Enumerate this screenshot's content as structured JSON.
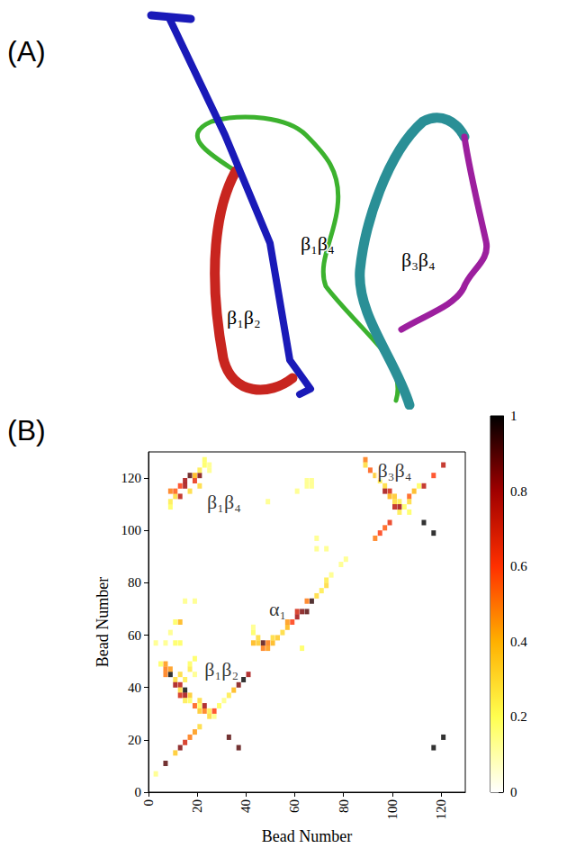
{
  "structure": {
    "panel_label": "(A)",
    "labels": [
      "β₁β₂",
      "β₁β₄",
      "β₃β₄"
    ]
  },
  "chart_data": {
    "type": "heatmap",
    "panel_label": "(B)",
    "x_label": "Bead Number",
    "y_label": "Bead Number",
    "xlim": [
      0,
      130
    ],
    "ylim": [
      0,
      130
    ],
    "xticks": [
      0,
      20,
      40,
      60,
      80,
      100,
      120
    ],
    "yticks": [
      0,
      20,
      40,
      60,
      80,
      100,
      120
    ],
    "colorbar": {
      "range": [
        0,
        1
      ],
      "ticks": [
        0,
        0.2,
        0.4,
        0.6,
        0.8,
        1
      ]
    },
    "annotations": [
      {
        "text": "β₁β₂",
        "x": 30,
        "y": 47
      },
      {
        "text": "β₁β₄",
        "x": 31,
        "y": 111
      },
      {
        "text": "α₁",
        "x": 53,
        "y": 70
      },
      {
        "text": "β₃β₄",
        "x": 101,
        "y": 123
      }
    ],
    "cells": [
      [
        3,
        7,
        0.15
      ],
      [
        7,
        11,
        0.9
      ],
      [
        11,
        15,
        0.35
      ],
      [
        13,
        17,
        0.85
      ],
      [
        15,
        19,
        0.7
      ],
      [
        17,
        21,
        0.5
      ],
      [
        19,
        23,
        0.45
      ],
      [
        21,
        25,
        0.3
      ],
      [
        5,
        49,
        0.2
      ],
      [
        7,
        45,
        0.5
      ],
      [
        7,
        47,
        0.5
      ],
      [
        7,
        49,
        0.45
      ],
      [
        9,
        45,
        1
      ],
      [
        9,
        47,
        0.45
      ],
      [
        11,
        43,
        0.3
      ],
      [
        11,
        41,
        0.8
      ],
      [
        13,
        41,
        0.75
      ],
      [
        13,
        39,
        0.3
      ],
      [
        15,
        39,
        1
      ],
      [
        15,
        37,
        0.8
      ],
      [
        13,
        37,
        0.7
      ],
      [
        17,
        37,
        0.35
      ],
      [
        15,
        35,
        0.25
      ],
      [
        17,
        35,
        0.2
      ],
      [
        19,
        33,
        0.55
      ],
      [
        21,
        35,
        0.3
      ],
      [
        21,
        33,
        0.2
      ],
      [
        23,
        33,
        0.8
      ],
      [
        21,
        31,
        0.35
      ],
      [
        23,
        31,
        0.5
      ],
      [
        25,
        31,
        0.25
      ],
      [
        25,
        29,
        0.3
      ],
      [
        27,
        29,
        0.15
      ],
      [
        27,
        31,
        0.6
      ],
      [
        29,
        33,
        0.2
      ],
      [
        31,
        35,
        0.15
      ],
      [
        33,
        21,
        0.9
      ],
      [
        37,
        17,
        0.9
      ],
      [
        3,
        57,
        0.15
      ],
      [
        7,
        57,
        0.15
      ],
      [
        11,
        57,
        0.2
      ],
      [
        9,
        61,
        0.15
      ],
      [
        11,
        65,
        0.2
      ],
      [
        13,
        65,
        0.4
      ],
      [
        15,
        73,
        0.15
      ],
      [
        19,
        73,
        0.15
      ],
      [
        13,
        57,
        0.2
      ],
      [
        17,
        49,
        0.2
      ],
      [
        19,
        51,
        0.2
      ],
      [
        17,
        47,
        0.25
      ],
      [
        13,
        45,
        0.3
      ],
      [
        15,
        43,
        0.25
      ],
      [
        19,
        45,
        0.15
      ],
      [
        33,
        37,
        0.25
      ],
      [
        35,
        39,
        0.4
      ],
      [
        37,
        41,
        0.85
      ],
      [
        39,
        43,
        1
      ],
      [
        41,
        45,
        0.8
      ],
      [
        43,
        57,
        0.4
      ],
      [
        45,
        57,
        0.35
      ],
      [
        43,
        61,
        0.2
      ],
      [
        45,
        59,
        0.3
      ],
      [
        47,
        57,
        0.9
      ],
      [
        47,
        55,
        0.5
      ],
      [
        49,
        55,
        0.45
      ],
      [
        49,
        57,
        0.5
      ],
      [
        51,
        57,
        0.4
      ],
      [
        51,
        59,
        0.3
      ],
      [
        53,
        59,
        0.35
      ],
      [
        55,
        61,
        0.3
      ],
      [
        57,
        63,
        0.4
      ],
      [
        57,
        65,
        0.45
      ],
      [
        59,
        65,
        0.6
      ],
      [
        61,
        67,
        0.8
      ],
      [
        61,
        69,
        0.7
      ],
      [
        63,
        69,
        0.85
      ],
      [
        65,
        69,
        0.9
      ],
      [
        67,
        73,
        0.95
      ],
      [
        63,
        55,
        0.2
      ],
      [
        65,
        73,
        0.5
      ],
      [
        69,
        75,
        0.3
      ],
      [
        71,
        77,
        0.25
      ],
      [
        73,
        79,
        0.3
      ],
      [
        73,
        81,
        0.25
      ],
      [
        75,
        83,
        0.15
      ],
      [
        79,
        87,
        0.15
      ],
      [
        81,
        89,
        0.15
      ],
      [
        69,
        93,
        0.15
      ],
      [
        69,
        97,
        0.15
      ],
      [
        73,
        93,
        0.15
      ],
      [
        65,
        117,
        0.15
      ],
      [
        65,
        119,
        0.15
      ],
      [
        67,
        117,
        0.15
      ],
      [
        67,
        119,
        0.15
      ],
      [
        61,
        115,
        0.15
      ],
      [
        49,
        111,
        0.15
      ],
      [
        43,
        63,
        0.15
      ],
      [
        89,
        127,
        0.5
      ],
      [
        89,
        125,
        0.3
      ],
      [
        91,
        123,
        0.55
      ],
      [
        93,
        121,
        0.35
      ],
      [
        95,
        119,
        0.25
      ],
      [
        97,
        117,
        0.3
      ],
      [
        97,
        115,
        0.8
      ],
      [
        99,
        115,
        0.7
      ],
      [
        99,
        113,
        0.4
      ],
      [
        101,
        113,
        0.35
      ],
      [
        101,
        111,
        0.3
      ],
      [
        103,
        111,
        0.25
      ],
      [
        105,
        109,
        0.2
      ],
      [
        103,
        107,
        0.25
      ],
      [
        107,
        107,
        0.2
      ],
      [
        93,
        97,
        0.5
      ],
      [
        95,
        99,
        0.6
      ],
      [
        97,
        101,
        0.55
      ],
      [
        99,
        103,
        0.65
      ],
      [
        101,
        109,
        0.75
      ],
      [
        103,
        109,
        0.8
      ],
      [
        107,
        113,
        0.55
      ],
      [
        109,
        115,
        0.4
      ],
      [
        113,
        117,
        0.75
      ],
      [
        117,
        121,
        0.6
      ],
      [
        121,
        125,
        0.75
      ],
      [
        107,
        111,
        0.3
      ],
      [
        111,
        117,
        0.2
      ],
      [
        113,
        103,
        1
      ],
      [
        117,
        99,
        1
      ],
      [
        117,
        17,
        1
      ],
      [
        121,
        21,
        1
      ],
      [
        9,
        109,
        0.2
      ],
      [
        9,
        111,
        0.25
      ],
      [
        9,
        115,
        0.5
      ],
      [
        11,
        113,
        0.3
      ],
      [
        11,
        115,
        0.55
      ],
      [
        13,
        113,
        0.75
      ],
      [
        13,
        117,
        0.6
      ],
      [
        15,
        117,
        0.8
      ],
      [
        15,
        119,
        0.8
      ],
      [
        17,
        115,
        0.3
      ],
      [
        17,
        121,
        0.9
      ],
      [
        19,
        119,
        0.65
      ],
      [
        19,
        121,
        0.4
      ],
      [
        21,
        117,
        0.3
      ],
      [
        21,
        121,
        0.85
      ],
      [
        21,
        123,
        0.25
      ],
      [
        23,
        125,
        0.2
      ],
      [
        23,
        127,
        0.2
      ],
      [
        25,
        123,
        0.15
      ],
      [
        25,
        125,
        0.15
      ]
    ]
  }
}
